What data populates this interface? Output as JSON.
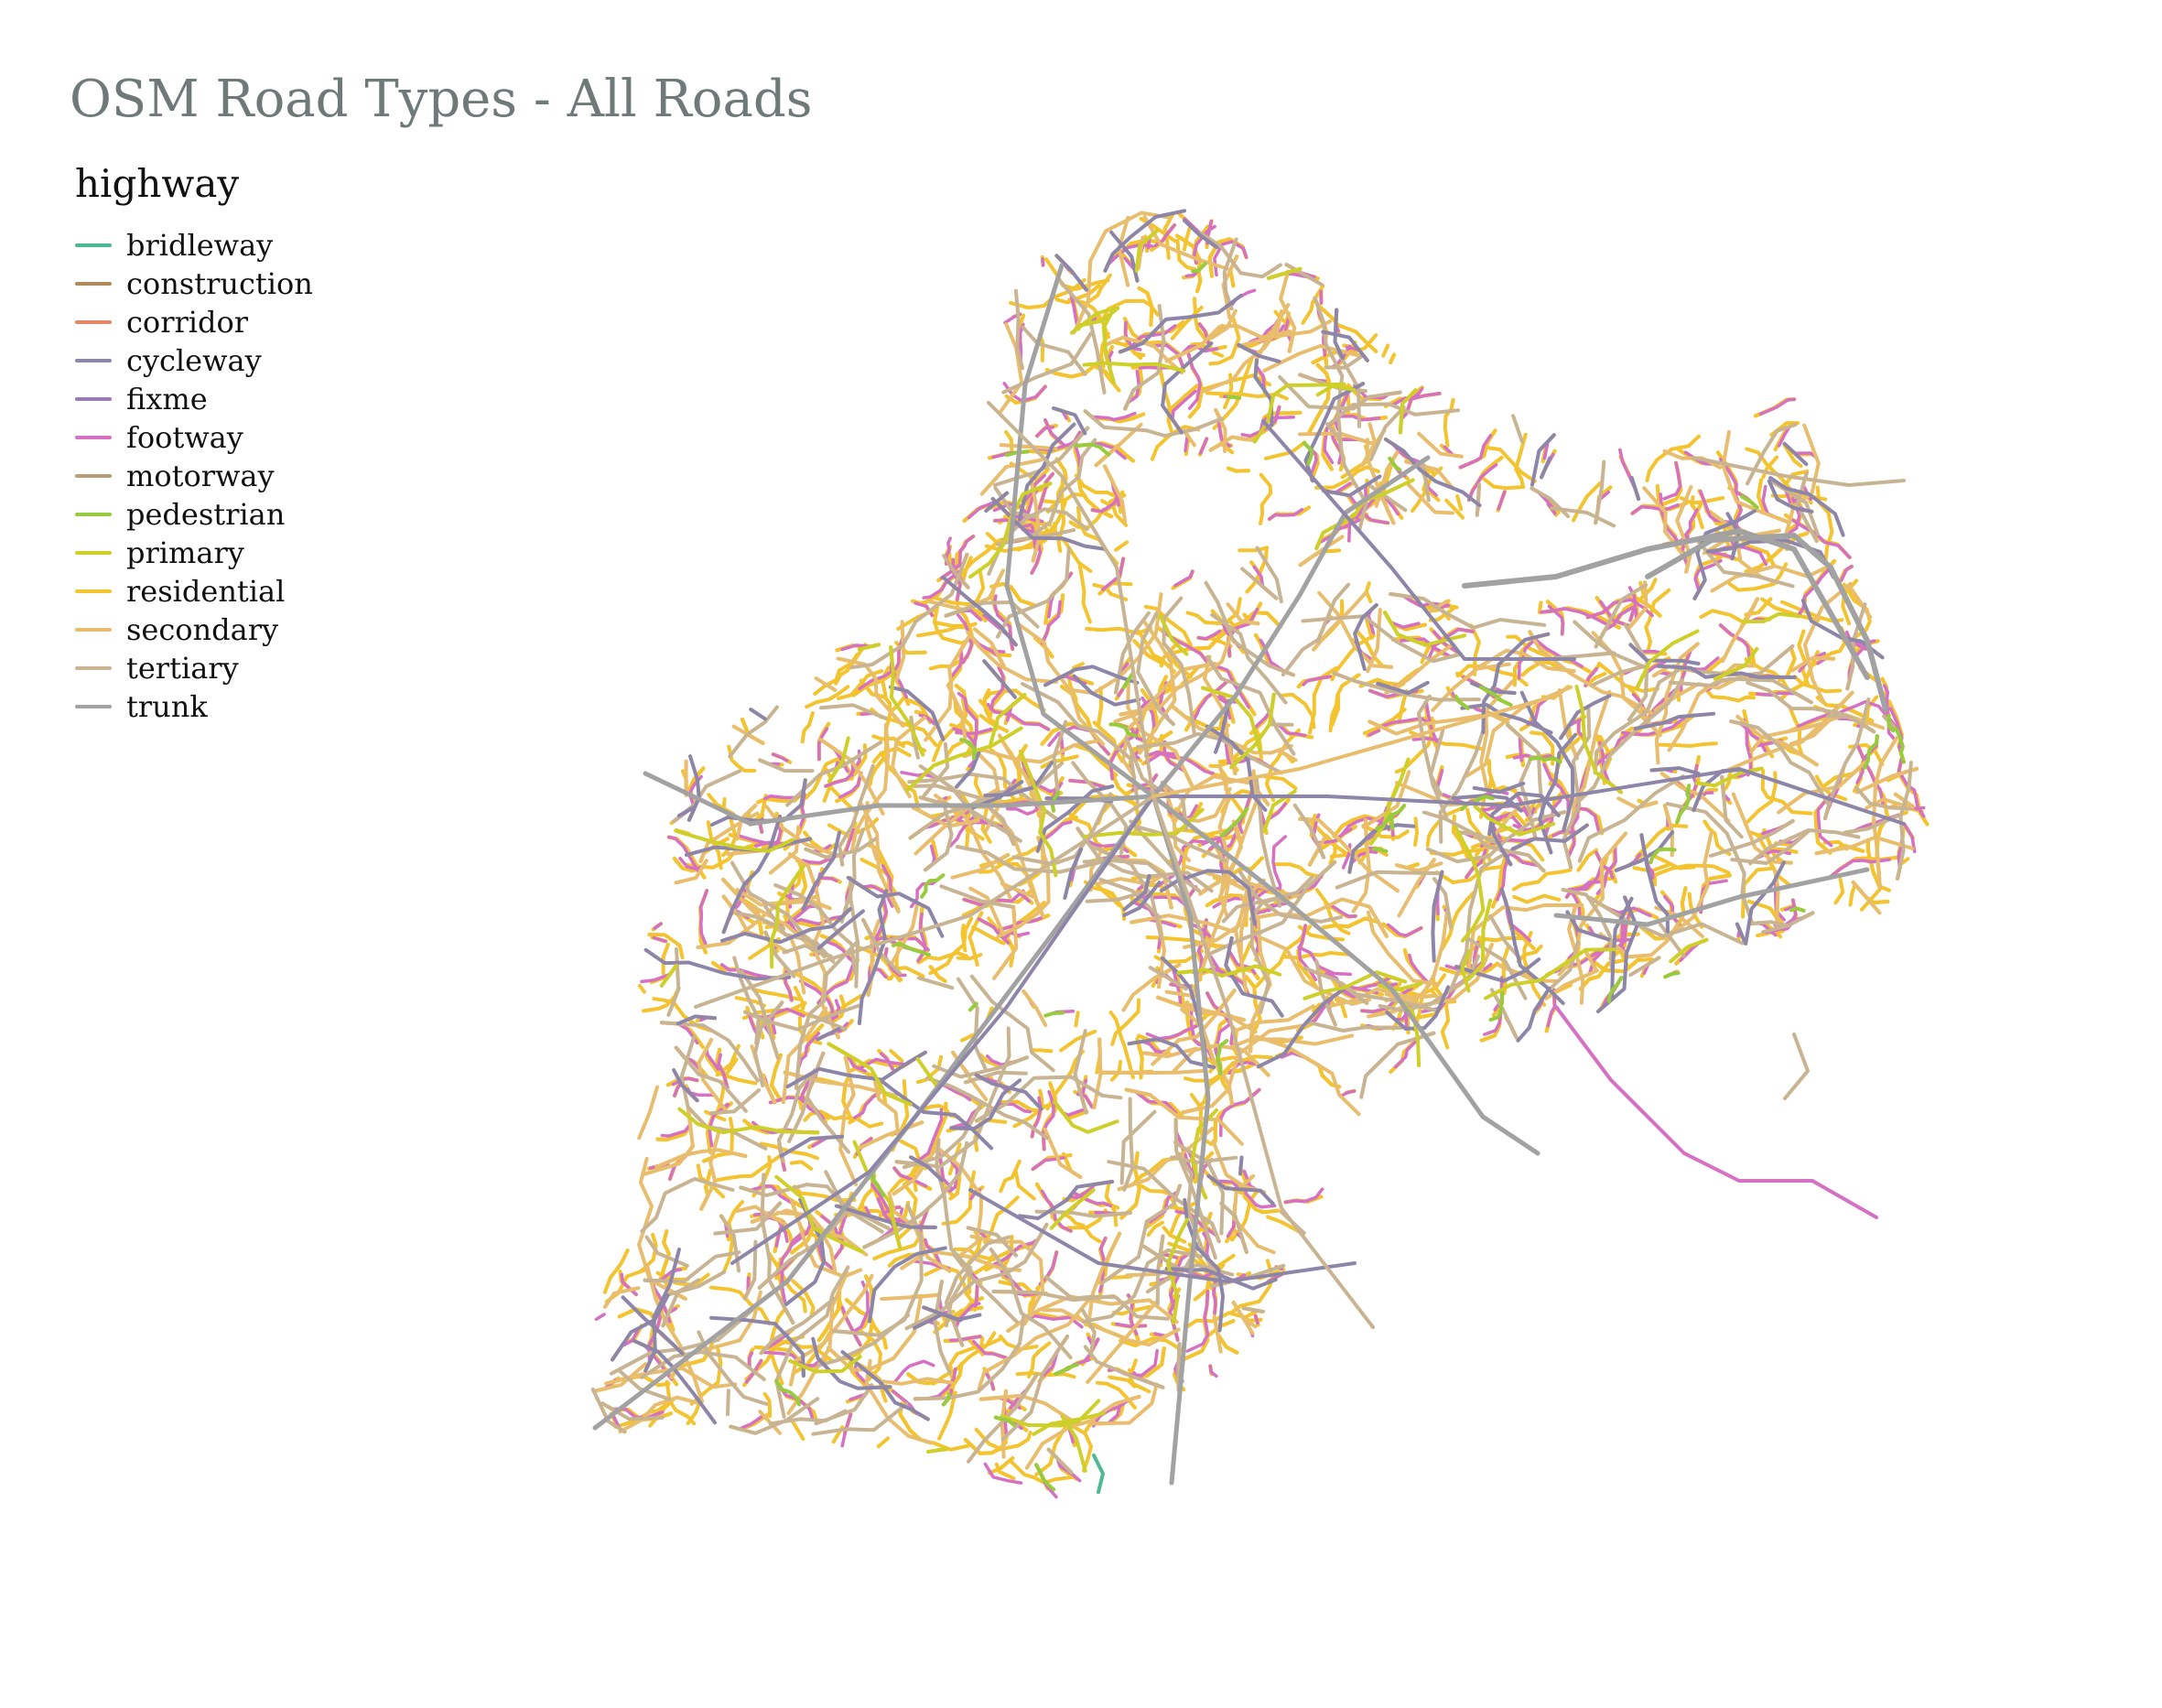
{
  "title": "OSM Road Types - All Roads",
  "legend": {
    "title": "highway",
    "items": [
      {
        "label": "bridleway",
        "color": "#4fb894"
      },
      {
        "label": "construction",
        "color": "#b08a5a"
      },
      {
        "label": "corridor",
        "color": "#e58666"
      },
      {
        "label": "cycleway",
        "color": "#8d86a8"
      },
      {
        "label": "fixme",
        "color": "#9a7bb8"
      },
      {
        "label": "footway",
        "color": "#d670c2"
      },
      {
        "label": "motorway",
        "color": "#b79e77"
      },
      {
        "label": "pedestrian",
        "color": "#97cc3f"
      },
      {
        "label": "primary",
        "color": "#cfcf2a"
      },
      {
        "label": "residential",
        "color": "#f3c42f"
      },
      {
        "label": "secondary",
        "color": "#e9bd6e"
      },
      {
        "label": "tertiary",
        "color": "#c8b492"
      },
      {
        "label": "trunk",
        "color": "#a2a2a2"
      }
    ]
  }
}
